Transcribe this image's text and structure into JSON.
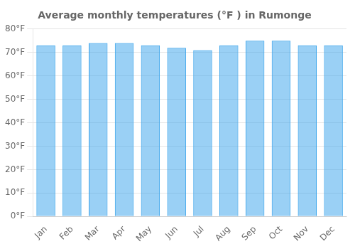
{
  "chart_data": {
    "type": "bar",
    "title": "Average monthly temperatures (°F ) in Rumonge",
    "categories": [
      "Jan",
      "Feb",
      "Mar",
      "Apr",
      "May",
      "Jun",
      "Jul",
      "Aug",
      "Sep",
      "Oct",
      "Nov",
      "Dec"
    ],
    "values": [
      73,
      73,
      74,
      74,
      73,
      72,
      71,
      73,
      75,
      75,
      73,
      73
    ],
    "ylim": [
      0,
      80
    ],
    "yticks": [
      {
        "value": 0,
        "label": "0°F"
      },
      {
        "value": 10,
        "label": "10°F"
      },
      {
        "value": 20,
        "label": "20°F"
      },
      {
        "value": 30,
        "label": "30°F"
      },
      {
        "value": 40,
        "label": "40°F"
      },
      {
        "value": 50,
        "label": "50°F"
      },
      {
        "value": 60,
        "label": "60°F"
      },
      {
        "value": 70,
        "label": "70°F"
      },
      {
        "value": 80,
        "label": "80°F"
      }
    ],
    "grid": true
  }
}
